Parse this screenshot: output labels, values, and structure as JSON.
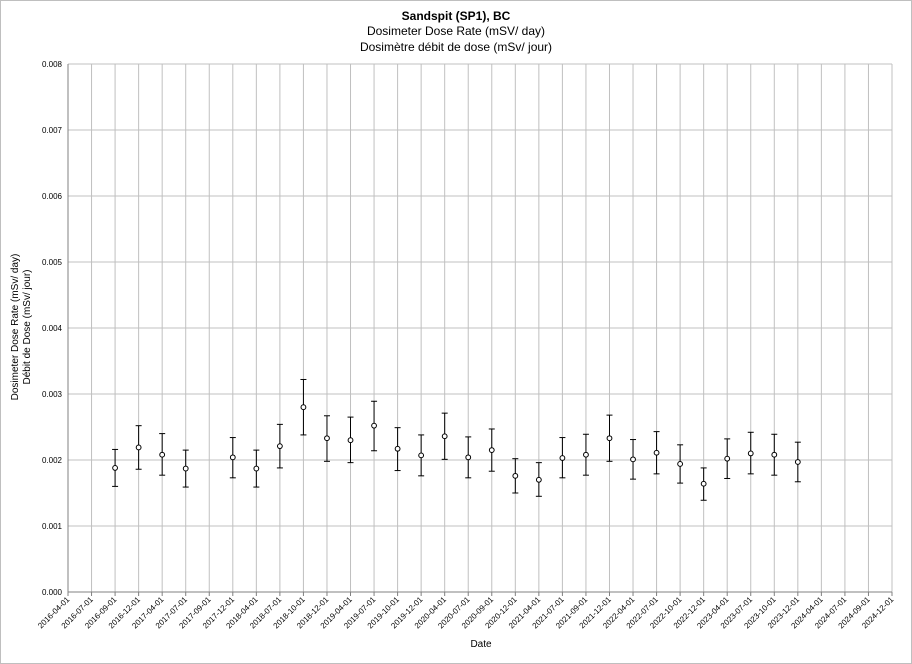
{
  "chart_data": {
    "type": "scatter",
    "title": "Sandspit (SP1), BC",
    "subtitle": "Dosimeter Dose Rate (mSV/ day)",
    "subtitle2": "Dosimètre débit de dose (mSv/ jour)",
    "xlabel": "Date",
    "ylabel": [
      "Dosimeter Dose Rate (mSv/ day)",
      "Débit de Dose (mSv/ jour)"
    ],
    "ylim": [
      0,
      0.008
    ],
    "yticks": [
      "0.000",
      "0.001",
      "0.002",
      "0.003",
      "0.004",
      "0.005",
      "0.006",
      "0.007",
      "0.008"
    ],
    "xticks": [
      "2016-04-01",
      "2016-07-01",
      "2016-09-01",
      "2016-12-01",
      "2017-04-01",
      "2017-07-01",
      "2017-09-01",
      "2017-12-01",
      "2018-04-01",
      "2018-07-01",
      "2018-10-01",
      "2018-12-01",
      "2019-04-01",
      "2019-07-01",
      "2019-10-01",
      "2019-12-01",
      "2020-04-01",
      "2020-07-01",
      "2020-09-01",
      "2020-12-01",
      "2021-04-01",
      "2021-07-01",
      "2021-09-01",
      "2021-12-01",
      "2022-04-01",
      "2022-07-01",
      "2022-10-01",
      "2022-12-01",
      "2023-04-01",
      "2023-07-01",
      "2023-10-01",
      "2023-12-01",
      "2024-04-01",
      "2024-07-01",
      "2024-09-01",
      "2024-12-01"
    ],
    "grid": true,
    "series": [
      {
        "points": [
          {
            "x": "2016-09-01",
            "y": 0.00188,
            "lo": 0.0016,
            "hi": 0.00216
          },
          {
            "x": "2016-12-01",
            "y": 0.00219,
            "lo": 0.00186,
            "hi": 0.00252
          },
          {
            "x": "2017-04-01",
            "y": 0.00208,
            "lo": 0.00177,
            "hi": 0.0024
          },
          {
            "x": "2017-07-01",
            "y": 0.00187,
            "lo": 0.00159,
            "hi": 0.00215
          },
          {
            "x": "2017-12-01",
            "y": 0.00204,
            "lo": 0.00173,
            "hi": 0.00234
          },
          {
            "x": "2018-04-01",
            "y": 0.00187,
            "lo": 0.00159,
            "hi": 0.00215
          },
          {
            "x": "2018-07-01",
            "y": 0.00221,
            "lo": 0.00188,
            "hi": 0.00254
          },
          {
            "x": "2018-10-01",
            "y": 0.0028,
            "lo": 0.00238,
            "hi": 0.00322
          },
          {
            "x": "2018-12-01",
            "y": 0.00233,
            "lo": 0.00198,
            "hi": 0.00267
          },
          {
            "x": "2019-04-01",
            "y": 0.0023,
            "lo": 0.00196,
            "hi": 0.00265
          },
          {
            "x": "2019-07-01",
            "y": 0.00252,
            "lo": 0.00214,
            "hi": 0.00289
          },
          {
            "x": "2019-10-01",
            "y": 0.00217,
            "lo": 0.00184,
            "hi": 0.00249
          },
          {
            "x": "2019-12-01",
            "y": 0.00207,
            "lo": 0.00176,
            "hi": 0.00238
          },
          {
            "x": "2020-04-01",
            "y": 0.00236,
            "lo": 0.00201,
            "hi": 0.00271
          },
          {
            "x": "2020-07-01",
            "y": 0.00204,
            "lo": 0.00173,
            "hi": 0.00235
          },
          {
            "x": "2020-09-01",
            "y": 0.00215,
            "lo": 0.00183,
            "hi": 0.00247
          },
          {
            "x": "2020-12-01",
            "y": 0.00176,
            "lo": 0.0015,
            "hi": 0.00202
          },
          {
            "x": "2021-04-01",
            "y": 0.0017,
            "lo": 0.00145,
            "hi": 0.00196
          },
          {
            "x": "2021-07-01",
            "y": 0.00203,
            "lo": 0.00173,
            "hi": 0.00234
          },
          {
            "x": "2021-09-01",
            "y": 0.00208,
            "lo": 0.00177,
            "hi": 0.00239
          },
          {
            "x": "2021-12-01",
            "y": 0.00233,
            "lo": 0.00198,
            "hi": 0.00268
          },
          {
            "x": "2022-04-01",
            "y": 0.00201,
            "lo": 0.00171,
            "hi": 0.00231
          },
          {
            "x": "2022-07-01",
            "y": 0.00211,
            "lo": 0.00179,
            "hi": 0.00243
          },
          {
            "x": "2022-10-01",
            "y": 0.00194,
            "lo": 0.00165,
            "hi": 0.00223
          },
          {
            "x": "2022-12-01",
            "y": 0.00164,
            "lo": 0.00139,
            "hi": 0.00188
          },
          {
            "x": "2023-04-01",
            "y": 0.00202,
            "lo": 0.00172,
            "hi": 0.00232
          },
          {
            "x": "2023-07-01",
            "y": 0.0021,
            "lo": 0.00179,
            "hi": 0.00242
          },
          {
            "x": "2023-10-01",
            "y": 0.00208,
            "lo": 0.00177,
            "hi": 0.00239
          },
          {
            "x": "2023-12-01",
            "y": 0.00197,
            "lo": 0.00167,
            "hi": 0.00227
          }
        ]
      }
    ],
    "colors": {
      "marker_stroke": "#000000",
      "marker_fill": "#ffffff",
      "gridline": "#c0c0c0",
      "axis": "#808080"
    }
  }
}
